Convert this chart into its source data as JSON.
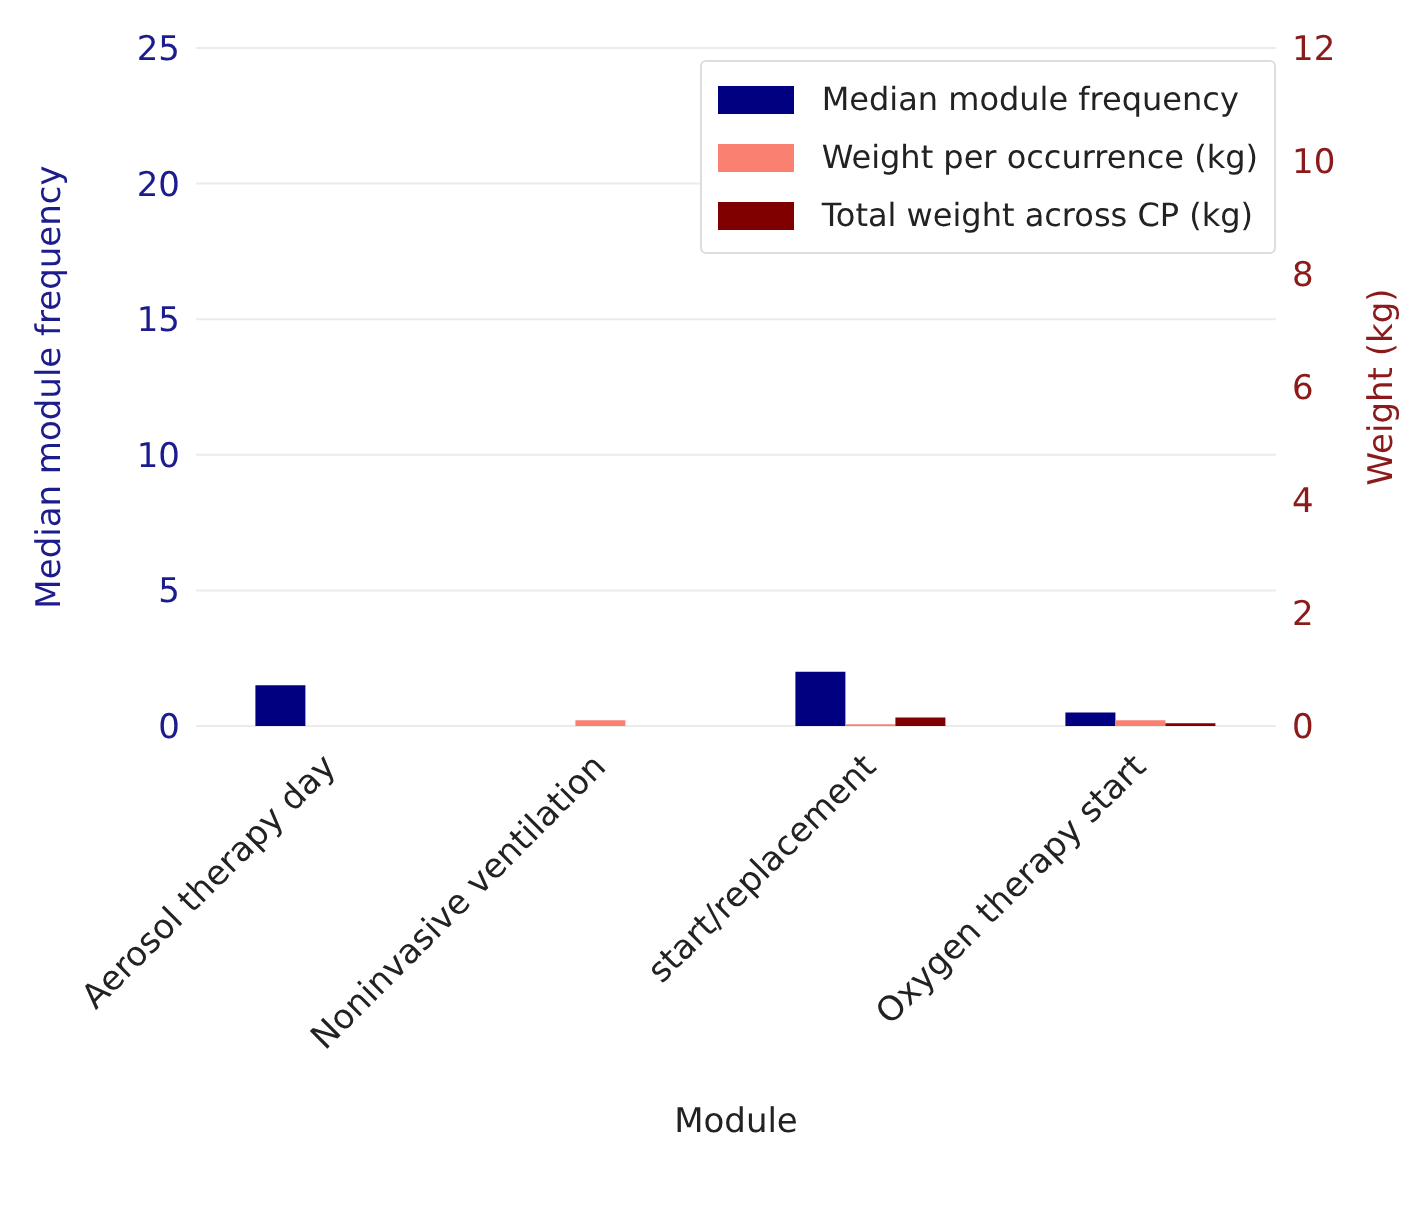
{
  "chart_data": {
    "type": "bar",
    "xlabel": "Module",
    "ylabel": "Median module frequency",
    "y2label": "Weight (kg)",
    "categories": [
      "Aerosol therapy day",
      "Noninvasive ventilation",
      "start/replacement",
      "Oxygen therapy start"
    ],
    "series": [
      {
        "name": "Median module frequency",
        "color": "#000080",
        "values": [
          1.5,
          null,
          2.0,
          0.5
        ]
      },
      {
        "name": "Weight per occurrence (kg)",
        "color": "#fa8072",
        "values": [
          null,
          0.1,
          0.03,
          0.1
        ],
        "axis": "y2"
      },
      {
        "name": "Total weight across CP (kg)",
        "color": "#800000",
        "values": [
          null,
          null,
          0.15,
          0.05
        ],
        "axis": "y2"
      }
    ],
    "ylim": [
      0,
      25
    ],
    "yticks": [
      0,
      5,
      10,
      15,
      20,
      25
    ],
    "y2lim": [
      0,
      12
    ],
    "y2ticks": [
      0,
      2,
      4,
      6,
      8,
      10,
      12
    ],
    "grid": "y",
    "legend": "top right"
  }
}
